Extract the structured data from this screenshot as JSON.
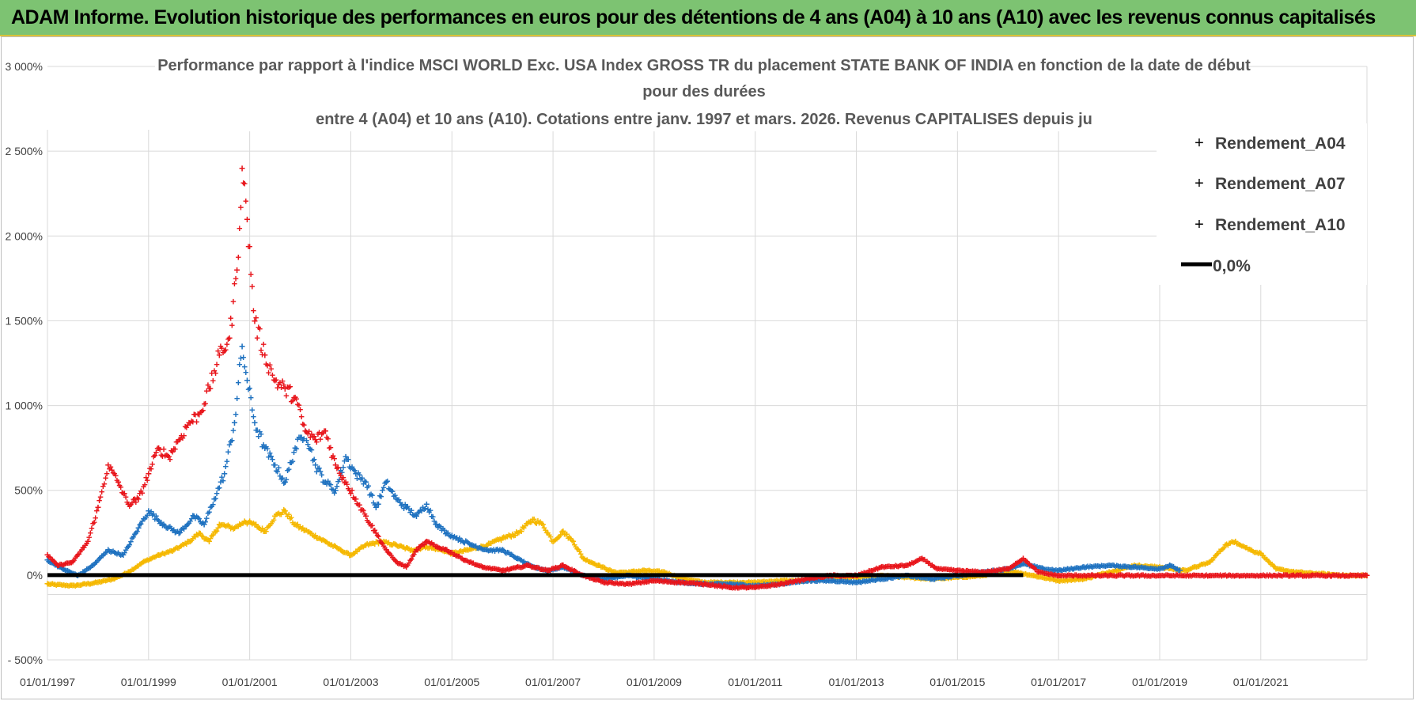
{
  "header": {
    "title": "ADAM Informe. Evolution historique des performances en euros pour des détentions de 4 ans (A04) à 10 ans (A10) avec les revenus connus capitalisés"
  },
  "chart_data": {
    "type": "scatter",
    "title_lines": [
      "Performance par rapport à l'indice MSCI WORLD Exc. USA Index GROSS TR  du placement STATE BANK OF INDIA en fonction de la date de début",
      "pour des durées",
      "entre 4 (A04) et 10 ans (A10).  Cotations entre janv. 1997 et mars. 2026.  Revenus CAPITALISES depuis ju"
    ],
    "y_ticks": [
      "3 000%",
      "2 500%",
      "2 000%",
      "1 500%",
      "1 000%",
      "500%",
      "0%",
      "- 500%"
    ],
    "x_ticks": [
      "01/01/1997",
      "01/01/1999",
      "01/01/2001",
      "01/01/2003",
      "01/01/2005",
      "01/01/2007",
      "01/01/2009",
      "01/01/2011",
      "01/01/2013",
      "01/01/2015",
      "01/01/2017",
      "01/01/2019",
      "01/01/2021"
    ],
    "ylim": [
      -500,
      3000
    ],
    "xlim": [
      1997.0,
      2023.1
    ],
    "xlabel": "",
    "ylabel": "",
    "grid": true,
    "legend_position": "top-right",
    "zero_line": {
      "name": "0,0%",
      "value": 0,
      "color": "#000000"
    },
    "series": [
      {
        "name": "Rendement_A04",
        "color": "#f5b800",
        "points": [
          [
            1997.0,
            -50
          ],
          [
            1997.5,
            -60
          ],
          [
            1998.0,
            -40
          ],
          [
            1998.3,
            -20
          ],
          [
            1998.6,
            20
          ],
          [
            1998.9,
            80
          ],
          [
            1999.2,
            120
          ],
          [
            1999.5,
            150
          ],
          [
            1999.8,
            200
          ],
          [
            2000.0,
            250
          ],
          [
            2000.2,
            200
          ],
          [
            2000.4,
            300
          ],
          [
            2000.7,
            280
          ],
          [
            2000.9,
            320
          ],
          [
            2001.1,
            300
          ],
          [
            2001.3,
            260
          ],
          [
            2001.5,
            350
          ],
          [
            2001.7,
            380
          ],
          [
            2001.9,
            300
          ],
          [
            2002.2,
            250
          ],
          [
            2002.5,
            200
          ],
          [
            2002.8,
            150
          ],
          [
            2003.0,
            120
          ],
          [
            2003.3,
            180
          ],
          [
            2003.6,
            200
          ],
          [
            2003.9,
            180
          ],
          [
            2004.2,
            150
          ],
          [
            2004.5,
            170
          ],
          [
            2004.8,
            150
          ],
          [
            2005.0,
            130
          ],
          [
            2005.3,
            150
          ],
          [
            2005.7,
            180
          ],
          [
            2006.0,
            220
          ],
          [
            2006.3,
            250
          ],
          [
            2006.6,
            330
          ],
          [
            2006.8,
            300
          ],
          [
            2007.0,
            200
          ],
          [
            2007.2,
            260
          ],
          [
            2007.4,
            200
          ],
          [
            2007.6,
            100
          ],
          [
            2007.9,
            60
          ],
          [
            2008.2,
            20
          ],
          [
            2008.5,
            20
          ],
          [
            2008.8,
            30
          ],
          [
            2009.2,
            20
          ],
          [
            2009.6,
            -20
          ],
          [
            2010.0,
            -40
          ],
          [
            2010.5,
            -40
          ],
          [
            2011.0,
            -40
          ],
          [
            2011.5,
            -30
          ],
          [
            2012.0,
            -30
          ],
          [
            2012.5,
            -10
          ],
          [
            2013.0,
            -10
          ],
          [
            2013.5,
            0
          ],
          [
            2014.0,
            -10
          ],
          [
            2014.5,
            -20
          ],
          [
            2015.0,
            -10
          ],
          [
            2015.5,
            0
          ],
          [
            2016.0,
            30
          ],
          [
            2016.5,
            0
          ],
          [
            2017.0,
            -30
          ],
          [
            2017.5,
            -20
          ],
          [
            2018.0,
            20
          ],
          [
            2018.5,
            60
          ],
          [
            2019.0,
            50
          ],
          [
            2019.5,
            30
          ],
          [
            2020.0,
            80
          ],
          [
            2020.3,
            180
          ],
          [
            2020.5,
            200
          ],
          [
            2020.8,
            150
          ],
          [
            2021.0,
            130
          ],
          [
            2021.3,
            40
          ],
          [
            2021.7,
            20
          ],
          [
            2022.2,
            10
          ],
          [
            2022.7,
            0
          ],
          [
            2023.1,
            0
          ]
        ]
      },
      {
        "name": "Rendement_A07",
        "color": "#1f72c0",
        "points": [
          [
            1997.0,
            90
          ],
          [
            1997.3,
            40
          ],
          [
            1997.6,
            0
          ],
          [
            1997.9,
            60
          ],
          [
            1998.2,
            150
          ],
          [
            1998.5,
            120
          ],
          [
            1998.8,
            280
          ],
          [
            1999.0,
            380
          ],
          [
            1999.3,
            300
          ],
          [
            1999.6,
            250
          ],
          [
            1999.9,
            350
          ],
          [
            2000.1,
            300
          ],
          [
            2000.3,
            450
          ],
          [
            2000.5,
            600
          ],
          [
            2000.7,
            900
          ],
          [
            2000.85,
            1350
          ],
          [
            2000.95,
            1150
          ],
          [
            2001.1,
            900
          ],
          [
            2001.3,
            750
          ],
          [
            2001.5,
            650
          ],
          [
            2001.7,
            550
          ],
          [
            2001.9,
            750
          ],
          [
            2002.1,
            850
          ],
          [
            2002.3,
            650
          ],
          [
            2002.5,
            550
          ],
          [
            2002.7,
            500
          ],
          [
            2002.9,
            700
          ],
          [
            2003.1,
            600
          ],
          [
            2003.3,
            550
          ],
          [
            2003.5,
            400
          ],
          [
            2003.7,
            550
          ],
          [
            2003.9,
            450
          ],
          [
            2004.1,
            400
          ],
          [
            2004.3,
            350
          ],
          [
            2004.5,
            420
          ],
          [
            2004.7,
            300
          ],
          [
            2004.9,
            250
          ],
          [
            2005.1,
            220
          ],
          [
            2005.4,
            180
          ],
          [
            2005.7,
            150
          ],
          [
            2006.0,
            150
          ],
          [
            2006.3,
            100
          ],
          [
            2006.6,
            50
          ],
          [
            2006.9,
            30
          ],
          [
            2007.2,
            50
          ],
          [
            2007.6,
            0
          ],
          [
            2008.0,
            -20
          ],
          [
            2008.5,
            0
          ],
          [
            2009.0,
            -20
          ],
          [
            2009.5,
            -40
          ],
          [
            2010.0,
            -50
          ],
          [
            2010.5,
            -50
          ],
          [
            2011.0,
            -60
          ],
          [
            2011.5,
            -50
          ],
          [
            2012.0,
            -30
          ],
          [
            2012.5,
            -30
          ],
          [
            2013.0,
            -40
          ],
          [
            2013.5,
            -20
          ],
          [
            2014.0,
            0
          ],
          [
            2014.5,
            -20
          ],
          [
            2015.0,
            0
          ],
          [
            2015.5,
            20
          ],
          [
            2016.0,
            40
          ],
          [
            2016.3,
            70
          ],
          [
            2016.7,
            40
          ],
          [
            2017.0,
            30
          ],
          [
            2017.5,
            50
          ],
          [
            2018.0,
            60
          ],
          [
            2018.5,
            50
          ],
          [
            2019.0,
            40
          ],
          [
            2019.2,
            60
          ],
          [
            2019.4,
            30
          ]
        ]
      },
      {
        "name": "Rendement_A10",
        "color": "#e8151b",
        "points": [
          [
            1997.0,
            120
          ],
          [
            1997.2,
            60
          ],
          [
            1997.5,
            80
          ],
          [
            1997.8,
            200
          ],
          [
            1998.0,
            400
          ],
          [
            1998.2,
            650
          ],
          [
            1998.4,
            550
          ],
          [
            1998.6,
            420
          ],
          [
            1998.8,
            450
          ],
          [
            1999.0,
            600
          ],
          [
            1999.2,
            750
          ],
          [
            1999.4,
            700
          ],
          [
            1999.6,
            800
          ],
          [
            1999.8,
            900
          ],
          [
            2000.0,
            950
          ],
          [
            2000.2,
            1100
          ],
          [
            2000.4,
            1300
          ],
          [
            2000.6,
            1400
          ],
          [
            2000.75,
            1800
          ],
          [
            2000.85,
            2400
          ],
          [
            2000.95,
            2100
          ],
          [
            2001.1,
            1500
          ],
          [
            2001.3,
            1300
          ],
          [
            2001.5,
            1150
          ],
          [
            2001.7,
            1100
          ],
          [
            2001.9,
            1050
          ],
          [
            2002.1,
            850
          ],
          [
            2002.3,
            800
          ],
          [
            2002.5,
            850
          ],
          [
            2002.7,
            650
          ],
          [
            2002.9,
            550
          ],
          [
            2003.1,
            450
          ],
          [
            2003.3,
            350
          ],
          [
            2003.5,
            250
          ],
          [
            2003.7,
            150
          ],
          [
            2003.9,
            80
          ],
          [
            2004.1,
            50
          ],
          [
            2004.3,
            150
          ],
          [
            2004.5,
            200
          ],
          [
            2004.7,
            170
          ],
          [
            2004.9,
            150
          ],
          [
            2005.2,
            100
          ],
          [
            2005.6,
            50
          ],
          [
            2006.0,
            30
          ],
          [
            2006.5,
            60
          ],
          [
            2006.9,
            30
          ],
          [
            2007.2,
            60
          ],
          [
            2007.6,
            0
          ],
          [
            2008.0,
            -40
          ],
          [
            2008.5,
            -50
          ],
          [
            2009.0,
            -30
          ],
          [
            2009.5,
            -40
          ],
          [
            2010.0,
            -50
          ],
          [
            2010.5,
            -70
          ],
          [
            2011.0,
            -70
          ],
          [
            2011.5,
            -50
          ],
          [
            2012.0,
            -20
          ],
          [
            2012.5,
            0
          ],
          [
            2013.0,
            0
          ],
          [
            2013.5,
            50
          ],
          [
            2014.0,
            60
          ],
          [
            2014.3,
            100
          ],
          [
            2014.6,
            40
          ],
          [
            2015.0,
            30
          ],
          [
            2015.5,
            20
          ],
          [
            2016.0,
            40
          ],
          [
            2016.3,
            100
          ],
          [
            2016.6,
            20
          ],
          [
            2017.0,
            0
          ],
          [
            2018.0,
            0
          ],
          [
            2019.0,
            0
          ],
          [
            2020.0,
            0
          ],
          [
            2021.0,
            0
          ],
          [
            2022.0,
            0
          ],
          [
            2023.1,
            0
          ]
        ]
      }
    ]
  }
}
